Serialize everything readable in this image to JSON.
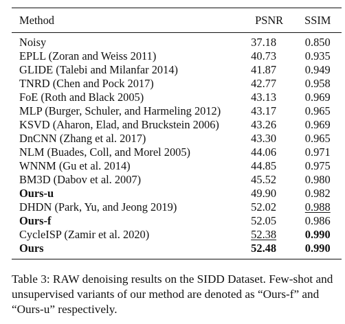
{
  "table": {
    "headers": [
      "Method",
      "PSNR",
      "SSIM"
    ],
    "rows": [
      {
        "method": "Noisy",
        "psnr": "37.18",
        "ssim": "0.850"
      },
      {
        "method": "EPLL (Zoran and Weiss 2011)",
        "psnr": "40.73",
        "ssim": "0.935"
      },
      {
        "method": "GLIDE (Talebi and Milanfar 2014)",
        "psnr": "41.87",
        "ssim": "0.949"
      },
      {
        "method": "TNRD (Chen and Pock 2017)",
        "psnr": "42.77",
        "ssim": "0.958"
      },
      {
        "method": "FoE (Roth and Black 2005)",
        "psnr": "43.13",
        "ssim": "0.969"
      },
      {
        "method": "MLP (Burger, Schuler, and Harmeling 2012)",
        "psnr": "43.17",
        "ssim": "0.965"
      },
      {
        "method": "KSVD (Aharon, Elad, and Bruckstein 2006)",
        "psnr": "43.26",
        "ssim": "0.969"
      },
      {
        "method": "DnCNN (Zhang et al. 2017)",
        "psnr": "43.30",
        "ssim": "0.965"
      },
      {
        "method": "NLM (Buades, Coll, and Morel 2005)",
        "psnr": "44.06",
        "ssim": "0.971"
      },
      {
        "method": "WNNM (Gu et al. 2014)",
        "psnr": "44.85",
        "ssim": "0.975"
      },
      {
        "method": "BM3D (Dabov et al. 2007)",
        "psnr": "45.52",
        "ssim": "0.980"
      },
      {
        "method": "Ours-u",
        "psnr": "49.90",
        "ssim": "0.982"
      },
      {
        "method": "DHDN (Park, Yu, and Jeong 2019)",
        "psnr": "52.02",
        "ssim": "0.988"
      },
      {
        "method": "Ours-f",
        "psnr": "52.05",
        "ssim": "0.986"
      },
      {
        "method": "CycleISP (Zamir et al. 2020)",
        "psnr": "52.38",
        "ssim": "0.990"
      },
      {
        "method": "Ours",
        "psnr": "52.48",
        "ssim": "0.990"
      }
    ]
  },
  "caption": "Table 3: RAW denoising results on the SIDD Dataset. Few-shot and unsupervised variants of our method are denoted as “Ours-f” and “Ours-u” respectively."
}
